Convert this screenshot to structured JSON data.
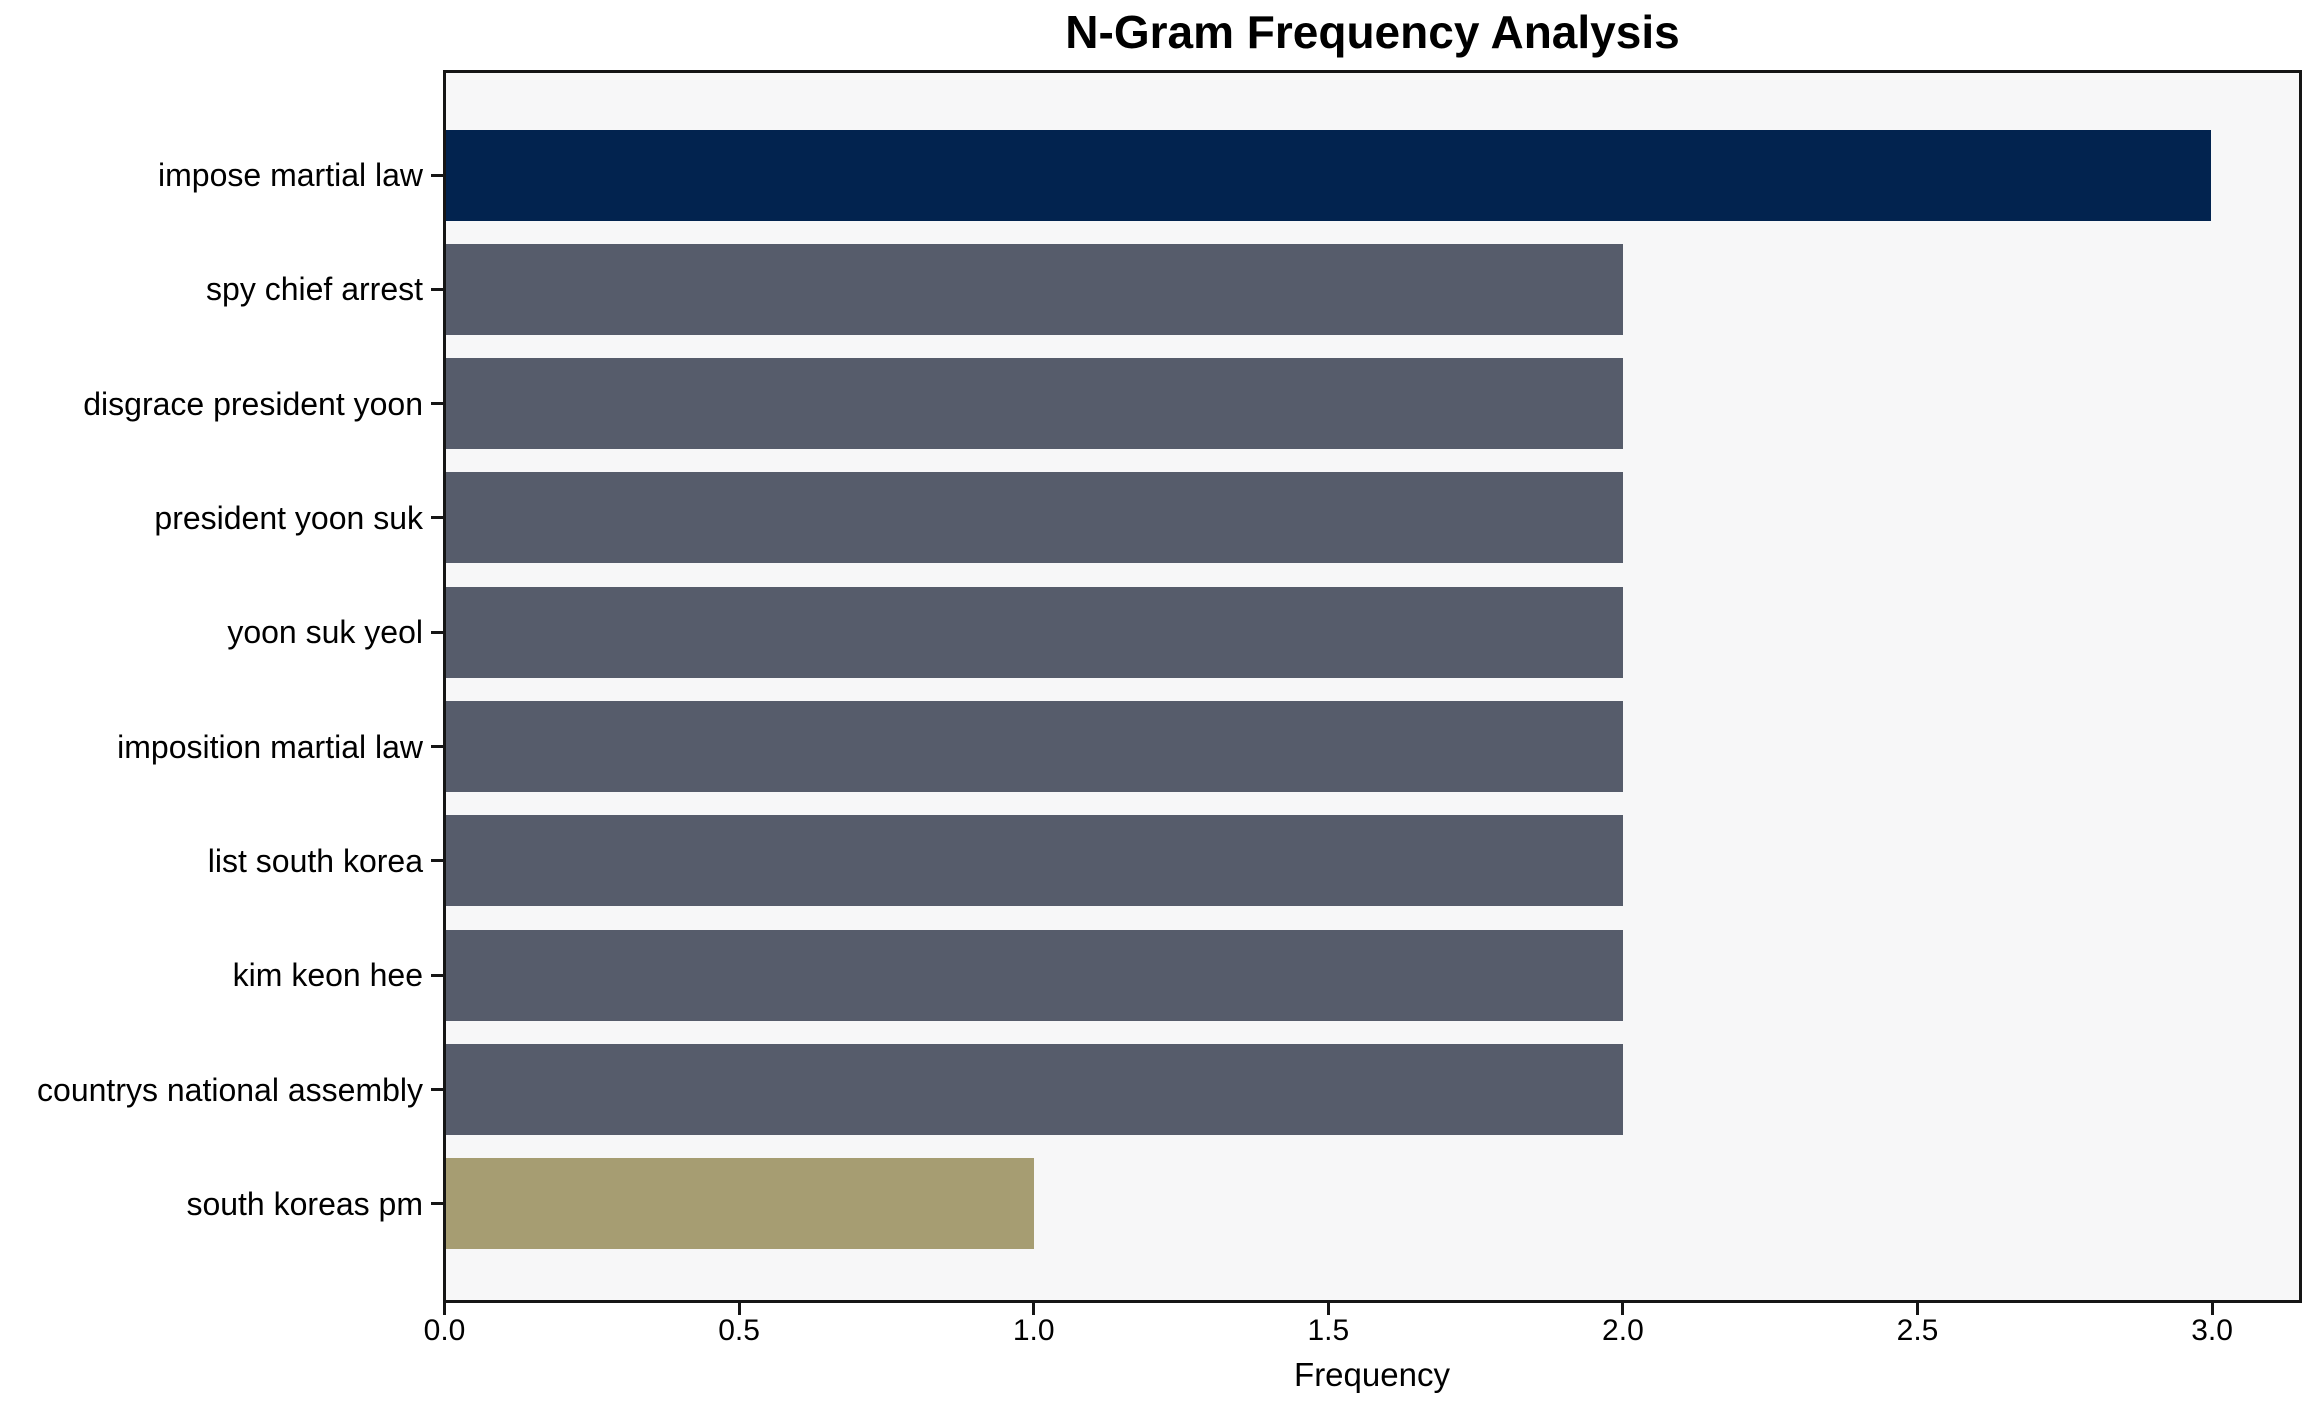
{
  "chart_data": {
    "type": "bar",
    "orientation": "horizontal",
    "title": "N-Gram Frequency Analysis",
    "xlabel": "Frequency",
    "ylabel": "",
    "categories": [
      "impose martial law",
      "spy chief arrest",
      "disgrace president yoon",
      "president yoon suk",
      "yoon suk yeol",
      "imposition martial law",
      "list south korea",
      "kim keon hee",
      "countrys national assembly",
      "south koreas pm"
    ],
    "values": [
      3,
      2,
      2,
      2,
      2,
      2,
      2,
      2,
      2,
      1
    ],
    "bar_colors": [
      "#02234F",
      "#565C6B",
      "#565C6B",
      "#565C6B",
      "#565C6B",
      "#565C6B",
      "#565C6B",
      "#565C6B",
      "#565C6B",
      "#A69D72"
    ],
    "colors": {
      "max_bar": "#02234F",
      "default_bar": "#565C6B",
      "min_bar": "#A69D72",
      "plot_background": "#F7F7F8",
      "figure_background": "#FFFFFF",
      "spine": "#151515",
      "text": "#000000"
    },
    "xlim": [
      0,
      3.15
    ],
    "xticks": [
      0.0,
      0.5,
      1.0,
      1.5,
      2.0,
      2.5,
      3.0
    ],
    "xtick_labels": [
      "0.0",
      "0.5",
      "1.0",
      "1.5",
      "2.0",
      "2.5",
      "3.0"
    ],
    "grid": false,
    "legend": false
  }
}
